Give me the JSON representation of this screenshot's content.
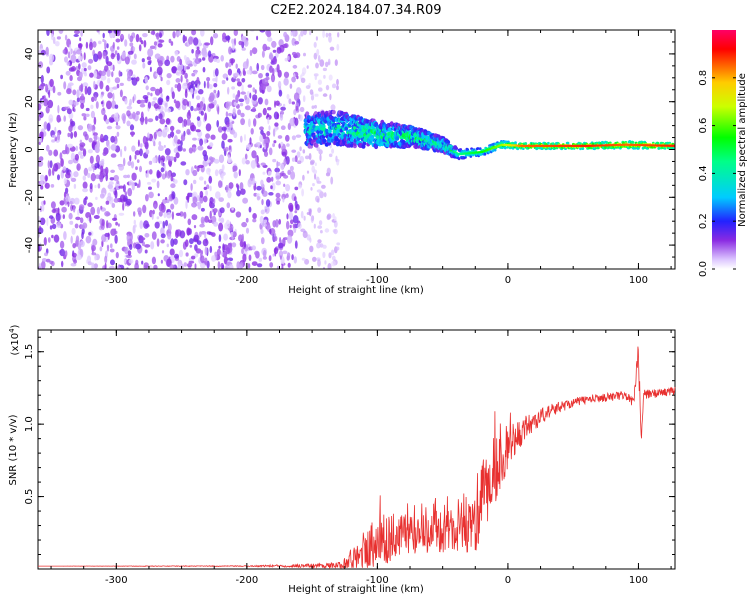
{
  "title": "C2E2.2024.184.07.34.R09",
  "chart_data": [
    {
      "type": "heatmap",
      "xlabel": "Height of straight line (km)",
      "ylabel": "Frequency (Hz)",
      "xlim": [
        -360,
        128
      ],
      "ylim": [
        -50,
        50
      ],
      "xticks": [
        -300,
        -200,
        -100,
        0,
        100
      ],
      "yticks": [
        -40,
        -20,
        0,
        20,
        40
      ],
      "colorbar": {
        "label": "Normalized spectral amplitude",
        "range": [
          0,
          1
        ],
        "ticks": [
          0.0,
          0.2,
          0.4,
          0.6,
          0.8
        ],
        "tick_labels": [
          "0.0",
          "0.2",
          "0.4",
          "0.6",
          "0.8"
        ]
      },
      "features": {
        "noise_region": {
          "x": [
            -360,
            -160
          ],
          "freq": [
            -50,
            50
          ],
          "amplitude": 0.1
        },
        "sparse_noise_region": {
          "x": [
            -160,
            -130
          ],
          "freq": [
            -50,
            50
          ],
          "amplitude": 0.05
        },
        "signal_ridge": [
          {
            "x": -155,
            "freq": 8,
            "halfwidth": 7,
            "amplitude": 0.3
          },
          {
            "x": -130,
            "freq": 9,
            "halfwidth": 7,
            "amplitude": 0.35
          },
          {
            "x": -110,
            "freq": 7,
            "halfwidth": 6,
            "amplitude": 0.4
          },
          {
            "x": -90,
            "freq": 6,
            "halfwidth": 5,
            "amplitude": 0.4
          },
          {
            "x": -70,
            "freq": 5,
            "halfwidth": 4,
            "amplitude": 0.4
          },
          {
            "x": -50,
            "freq": 2,
            "halfwidth": 3,
            "amplitude": 0.35
          },
          {
            "x": -38,
            "freq": -2,
            "halfwidth": 2,
            "amplitude": 0.4
          },
          {
            "x": -20,
            "freq": -1,
            "halfwidth": 1.5,
            "amplitude": 0.5
          },
          {
            "x": -5,
            "freq": 2,
            "halfwidth": 1.5,
            "amplitude": 0.6
          },
          {
            "x": 10,
            "freq": 1.5,
            "halfwidth": 1.2,
            "amplitude": 0.8
          },
          {
            "x": 60,
            "freq": 1.5,
            "halfwidth": 1.2,
            "amplitude": 0.85
          },
          {
            "x": 90,
            "freq": 2,
            "halfwidth": 1.5,
            "amplitude": 0.8
          },
          {
            "x": 128,
            "freq": 1.5,
            "halfwidth": 1.2,
            "amplitude": 0.85
          }
        ]
      }
    },
    {
      "type": "line",
      "xlabel": "Height of straight line (km)",
      "ylabel": "SNR (10 * v/v)",
      "y_multiplier_label": "(x10",
      "y_multiplier_exp": "4",
      "xlim": [
        -360,
        128
      ],
      "ylim": [
        0,
        16500
      ],
      "xticks": [
        -300,
        -200,
        -100,
        0,
        100
      ],
      "yticks": [
        5000,
        10000,
        15000
      ],
      "ytick_labels": [
        "0.5",
        "1.0",
        "1.5"
      ],
      "series": [
        {
          "color": "#e8302f",
          "x": [
            -360,
            -200,
            -130,
            -115,
            -105,
            -95,
            -85,
            -75,
            -65,
            -55,
            -45,
            -35,
            -25,
            -18,
            -12,
            -5,
            0,
            10,
            20,
            30,
            40,
            50,
            60,
            70,
            80,
            90,
            96,
            100,
            102,
            104,
            110,
            120,
            128
          ],
          "y": [
            200,
            200,
            250,
            800,
            1700,
            2000,
            2200,
            2400,
            2600,
            2600,
            2700,
            2500,
            3000,
            5000,
            6500,
            7500,
            8500,
            9500,
            10200,
            10800,
            11200,
            11500,
            11700,
            11800,
            11900,
            12000,
            11500,
            14500,
            9000,
            12000,
            12100,
            12200,
            12300
          ],
          "noise": [
            0,
            30,
            200,
            1200,
            1800,
            1800,
            1500,
            1500,
            1500,
            1500,
            1500,
            1500,
            2000,
            3000,
            2500,
            2000,
            1500,
            1000,
            700,
            500,
            400,
            300,
            300,
            300,
            300,
            300,
            400,
            1500,
            800,
            400,
            300,
            300,
            300
          ]
        }
      ]
    }
  ]
}
